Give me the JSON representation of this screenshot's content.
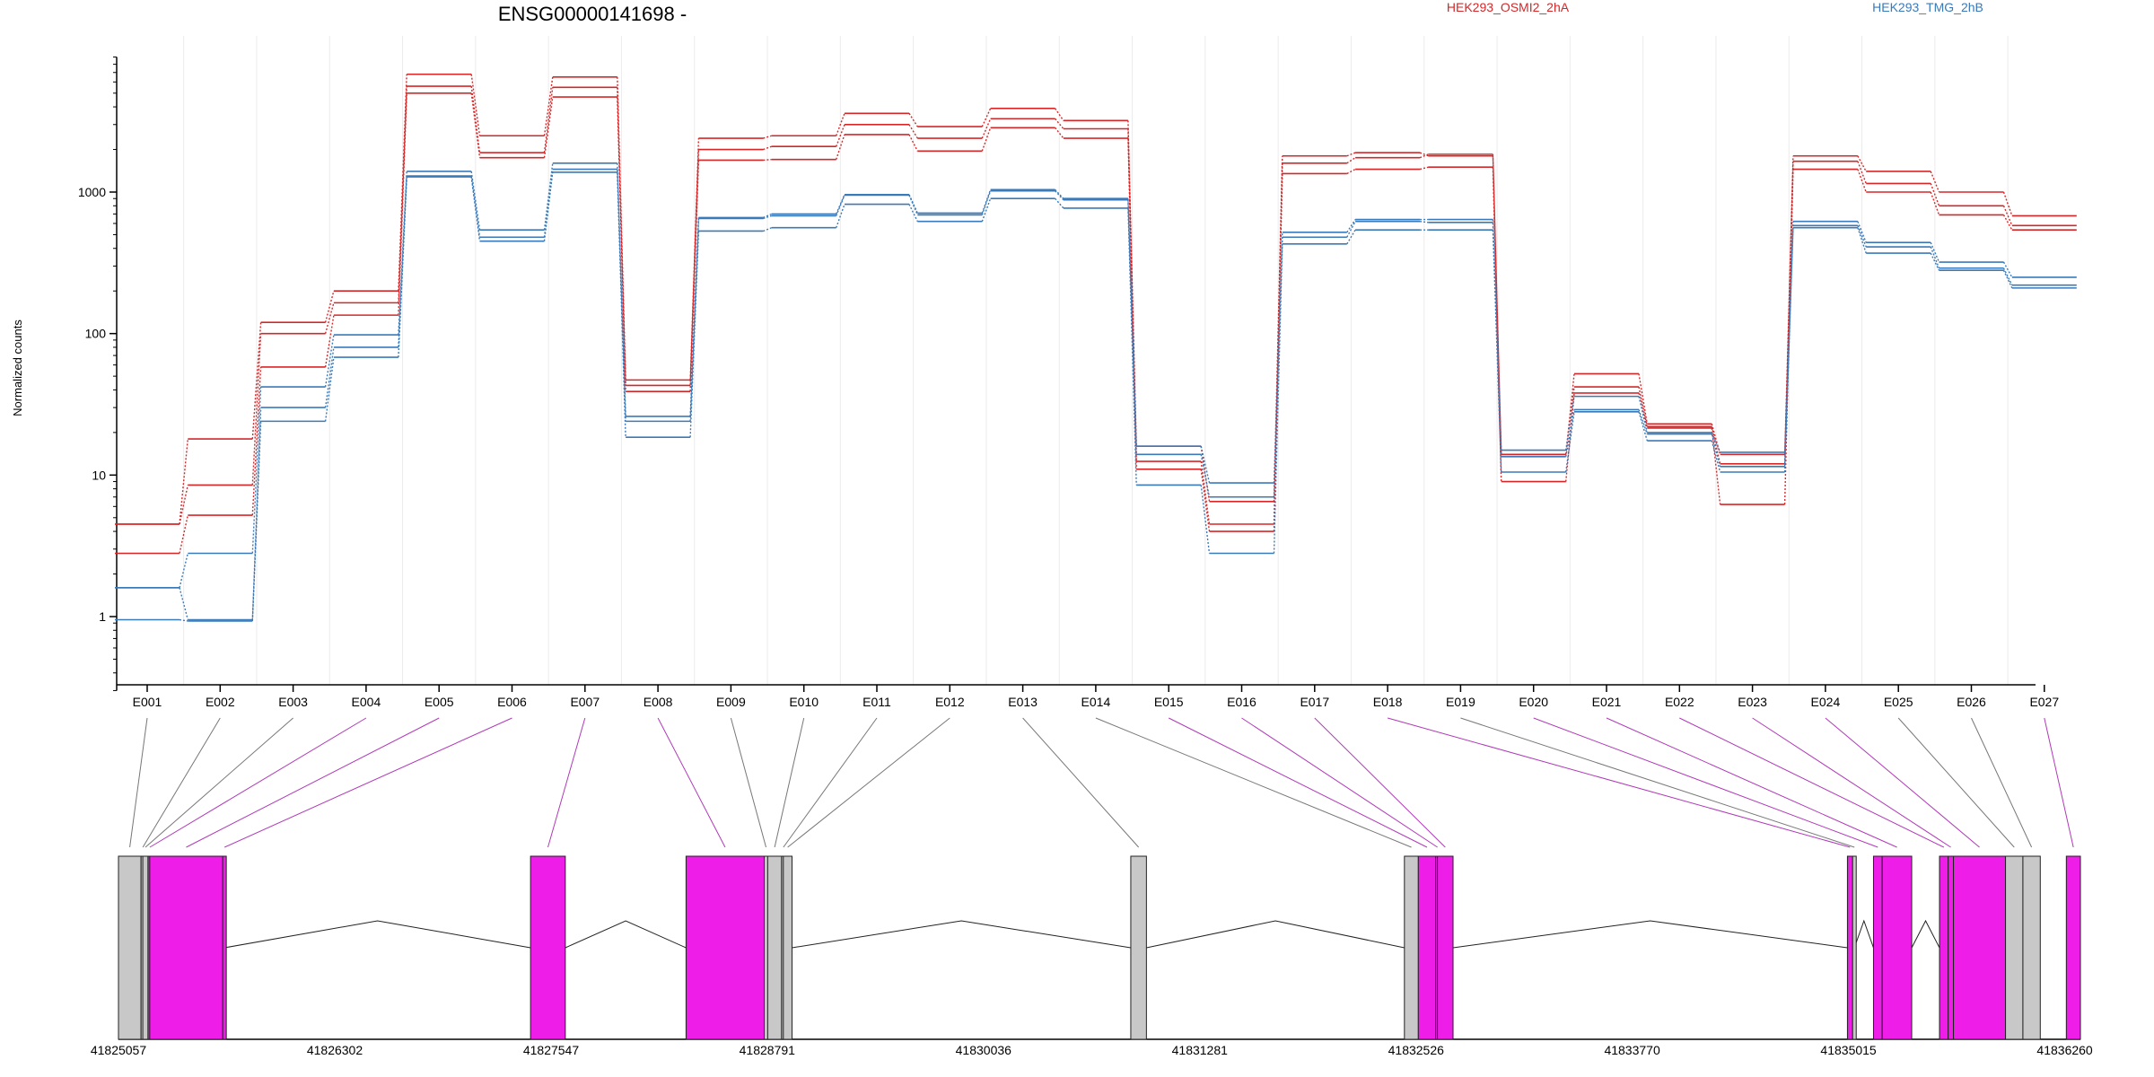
{
  "chart_data": {
    "type": "line",
    "title": "ENSG00000141698 -",
    "ylabel": "Normalized counts",
    "xlabel": "",
    "yscale": "log",
    "ylim": [
      0.3,
      9000
    ],
    "y_ticks": [
      1,
      10,
      100,
      1000
    ],
    "y_tick_labels": [
      "1",
      "10",
      "100",
      "1000"
    ],
    "categories": [
      "E001",
      "E002",
      "E003",
      "E004",
      "E005",
      "E006",
      "E007",
      "E008",
      "E009",
      "E010",
      "E011",
      "E012",
      "E013",
      "E014",
      "E015",
      "E016",
      "E017",
      "E018",
      "E019",
      "E020",
      "E021",
      "E022",
      "E023",
      "E024",
      "E025",
      "E026",
      "E027"
    ],
    "legend": [
      {
        "name": "HEK293_OSMI2_2hA",
        "color": "#d62728"
      },
      {
        "name": "HEK293_TMG_2hB",
        "color": "#3a7ab8"
      }
    ],
    "grid": "vertical",
    "series": [
      {
        "group": "HEK293_OSMI2_2hA",
        "color": "#d62728",
        "values": [
          4.5,
          18,
          120,
          200,
          6800,
          2500,
          6500,
          47,
          2400,
          2500,
          3600,
          2900,
          3900,
          3200,
          16,
          6.5,
          1800,
          1900,
          1800,
          14,
          52,
          23,
          14,
          1800,
          1400,
          1000,
          680
        ]
      },
      {
        "group": "HEK293_OSMI2_2hA",
        "color": "#d62728",
        "values": [
          4.5,
          8.5,
          100,
          165,
          5600,
          1900,
          5500,
          43,
          2000,
          2100,
          3000,
          2400,
          3300,
          2800,
          12.5,
          4.5,
          1600,
          1750,
          1850,
          14,
          42,
          22,
          12,
          1650,
          1150,
          800,
          580
        ]
      },
      {
        "group": "HEK293_OSMI2_2hA",
        "color": "#d62728",
        "values": [
          2.8,
          5.2,
          58,
          135,
          5000,
          1750,
          4700,
          39,
          1680,
          1700,
          2550,
          1950,
          2850,
          2400,
          11,
          4,
          1350,
          1450,
          1500,
          9,
          38,
          21.5,
          6.2,
          1450,
          1000,
          690,
          540
        ]
      },
      {
        "group": "HEK293_TMG_2hB",
        "color": "#3a7ab8",
        "values": [
          1.6,
          2.8,
          42,
          98,
          1400,
          540,
          1600,
          26,
          660,
          700,
          960,
          710,
          1040,
          900,
          16,
          8.8,
          520,
          640,
          640,
          15,
          36,
          20,
          14.5,
          620,
          440,
          320,
          250
        ]
      },
      {
        "group": "HEK293_TMG_2hB",
        "color": "#3a7ab8",
        "values": [
          1.6,
          0.95,
          30,
          80,
          1300,
          480,
          1450,
          24,
          650,
          680,
          950,
          690,
          1020,
          880,
          14,
          7,
          480,
          620,
          610,
          13.5,
          29,
          19.5,
          11.5,
          580,
          410,
          290,
          220
        ]
      },
      {
        "group": "HEK293_TMG_2hB",
        "color": "#3a7ab8",
        "values": [
          0.95,
          0.93,
          24,
          68,
          1280,
          450,
          1380,
          18.5,
          530,
          560,
          820,
          620,
          900,
          770,
          8.5,
          2.8,
          430,
          540,
          540,
          10.5,
          28,
          17.5,
          10.5,
          560,
          370,
          280,
          210
        ]
      }
    ],
    "gene_model": {
      "coordinate_ticks": [
        "41825057",
        "41826302",
        "41827547",
        "41828791",
        "41830036",
        "41831281",
        "41832526",
        "41833770",
        "41835015",
        "41836260"
      ],
      "coordinate_range": [
        41825057,
        41836350
      ],
      "exon_colors": {
        "significant": "#ee1ee8",
        "not_significant": "#c8c8c8"
      },
      "exons": [
        {
          "id": "E001",
          "start": 41825057,
          "end": 41825187,
          "sig": false
        },
        {
          "id": "E002",
          "start": 41825187,
          "end": 41825197,
          "sig": false
        },
        {
          "id": "E003",
          "start": 41825197,
          "end": 41825227,
          "sig": false
        },
        {
          "id": "E004",
          "start": 41825227,
          "end": 41825237,
          "sig": true
        },
        {
          "id": "E005",
          "start": 41825237,
          "end": 41825657,
          "sig": true
        },
        {
          "id": "E006",
          "start": 41825657,
          "end": 41825667,
          "sig": true
        },
        {
          "id": "E007",
          "start": 41827429,
          "end": 41827629,
          "sig": true
        },
        {
          "id": "E008",
          "start": 41828324,
          "end": 41828774,
          "sig": true
        },
        {
          "id": "E009",
          "start": 41828774,
          "end": 41828794,
          "sig": false
        },
        {
          "id": "E010",
          "start": 41828794,
          "end": 41828874,
          "sig": false
        },
        {
          "id": "E011",
          "start": 41828874,
          "end": 41828884,
          "sig": false
        },
        {
          "id": "E012",
          "start": 41828884,
          "end": 41828934,
          "sig": false
        },
        {
          "id": "E013",
          "start": 41830884,
          "end": 41830974,
          "sig": false
        },
        {
          "id": "E014",
          "start": 41832459,
          "end": 41832539,
          "sig": false
        },
        {
          "id": "E015",
          "start": 41832539,
          "end": 41832639,
          "sig": true
        },
        {
          "id": "E016",
          "start": 41832639,
          "end": 41832649,
          "sig": true
        },
        {
          "id": "E017",
          "start": 41832649,
          "end": 41832739,
          "sig": true
        },
        {
          "id": "E018",
          "start": 41835009,
          "end": 41835039,
          "sig": true
        },
        {
          "id": "E019",
          "start": 41835039,
          "end": 41835049,
          "sig": false
        },
        {
          "id": "E020",
          "start": 41835159,
          "end": 41835209,
          "sig": true
        },
        {
          "id": "E021",
          "start": 41835209,
          "end": 41835379,
          "sig": true
        },
        {
          "id": "E022",
          "start": 41835539,
          "end": 41835589,
          "sig": true
        },
        {
          "id": "E023",
          "start": 41835589,
          "end": 41835619,
          "sig": true
        },
        {
          "id": "E024",
          "start": 41835619,
          "end": 41835919,
          "sig": true
        },
        {
          "id": "E025",
          "start": 41835919,
          "end": 41836019,
          "sig": false
        },
        {
          "id": "E026",
          "start": 41836019,
          "end": 41836119,
          "sig": false
        },
        {
          "id": "E027",
          "start": 41836269,
          "end": 41836350,
          "sig": true
        }
      ],
      "introns": [
        [
          41825667,
          41827429
        ],
        [
          41827629,
          41828324
        ],
        [
          41828934,
          41830884
        ],
        [
          41830974,
          41832459
        ],
        [
          41832739,
          41835009
        ],
        [
          41835049,
          41835159
        ],
        [
          41835379,
          41835539
        ]
      ]
    }
  }
}
